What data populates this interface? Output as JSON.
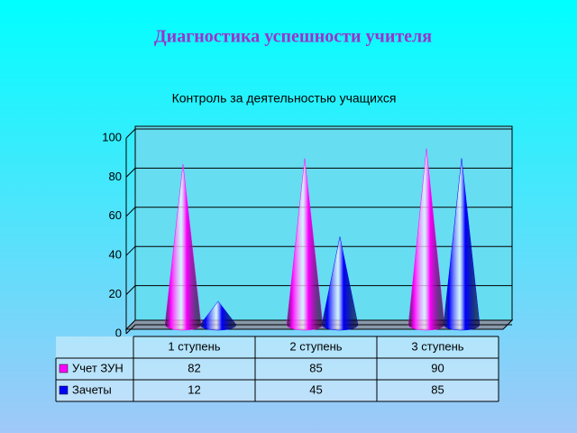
{
  "page_title": "Диагностика успешности учителя",
  "chart_data": {
    "type": "cone",
    "title": "Контроль за деятельностью учащихся",
    "categories": [
      "1 ступень",
      "2 ступень",
      "3 ступень"
    ],
    "series": [
      {
        "name": "Учет ЗУН",
        "color": "#ff00ff",
        "values": [
          82,
          85,
          90
        ]
      },
      {
        "name": "Зачеты",
        "color": "#0000ff",
        "values": [
          12,
          45,
          85
        ]
      }
    ],
    "ylim": [
      0,
      100
    ],
    "yticks": [
      0,
      20,
      40,
      60,
      80,
      100
    ],
    "grid": true
  }
}
